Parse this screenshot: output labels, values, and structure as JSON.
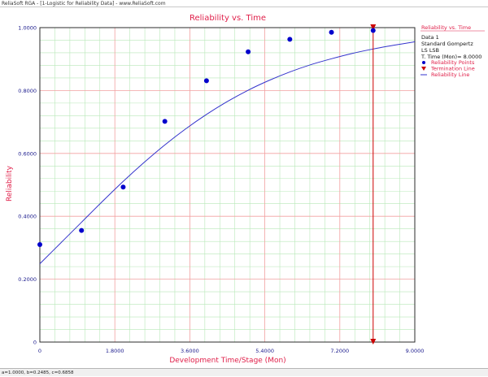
{
  "window": {
    "title": "ReliaSoft RGA - [1-Logistic for Reliability Data] - www.ReliaSoft.com"
  },
  "status": {
    "params": "a=1.0000, b=0.2485, c=0.6858"
  },
  "colors": {
    "title": "#e0204a",
    "axis_label": "#e0204a",
    "tick": "#1a1a8c",
    "major_grid": "#f2a0a0",
    "minor_grid": "#b8e8b8",
    "points": "#0000cc",
    "line": "#3333cc",
    "termination": "#cc0000"
  },
  "chart_data": {
    "type": "scatter",
    "title": "Reliability vs. Time",
    "xlabel": "Development Time/Stage (Mon)",
    "ylabel": "Reliability",
    "xlim": [
      0,
      9
    ],
    "ylim": [
      0,
      1
    ],
    "x_ticks": [
      "0",
      "1.8000",
      "3.6000",
      "5.4000",
      "7.2000",
      "9.0000"
    ],
    "y_ticks": [
      "0",
      "0.2000",
      "0.4000",
      "0.6000",
      "0.8000",
      "1.0000"
    ],
    "x_tick_values": [
      0,
      1.8,
      3.6,
      5.4,
      7.2,
      9
    ],
    "y_tick_values": [
      0,
      0.2,
      0.4,
      0.6,
      0.8,
      1
    ],
    "grid": true,
    "series": [
      {
        "name": "Reliability Points",
        "type": "scatter",
        "x": [
          0,
          1,
          2,
          3,
          4,
          5,
          6,
          7,
          8
        ],
        "y": [
          0.31,
          0.355,
          0.493,
          0.702,
          0.831,
          0.923,
          0.963,
          0.985,
          0.991
        ]
      },
      {
        "name": "Reliability Line",
        "type": "line",
        "x": [
          0,
          0.5,
          1,
          1.5,
          2,
          2.5,
          3,
          3.5,
          4,
          4.5,
          5,
          5.5,
          6,
          6.5,
          7,
          7.5,
          8,
          8.5,
          9
        ],
        "y": [
          0.249,
          0.315,
          0.381,
          0.447,
          0.511,
          0.571,
          0.627,
          0.678,
          0.724,
          0.765,
          0.801,
          0.832,
          0.859,
          0.882,
          0.901,
          0.918,
          0.932,
          0.944,
          0.955
        ]
      }
    ],
    "termination": {
      "name": "Termination Line",
      "x": 8
    },
    "legend": {
      "placement": "right",
      "header": "Reliability vs. Time",
      "data_name": "Data 1",
      "model": "Standard Gompertz",
      "method": "LS LSB",
      "time_text": "T. Time (Mon)= 8.0000",
      "items": [
        "Reliability Points",
        "Termination Line",
        "Reliability Line"
      ]
    }
  }
}
